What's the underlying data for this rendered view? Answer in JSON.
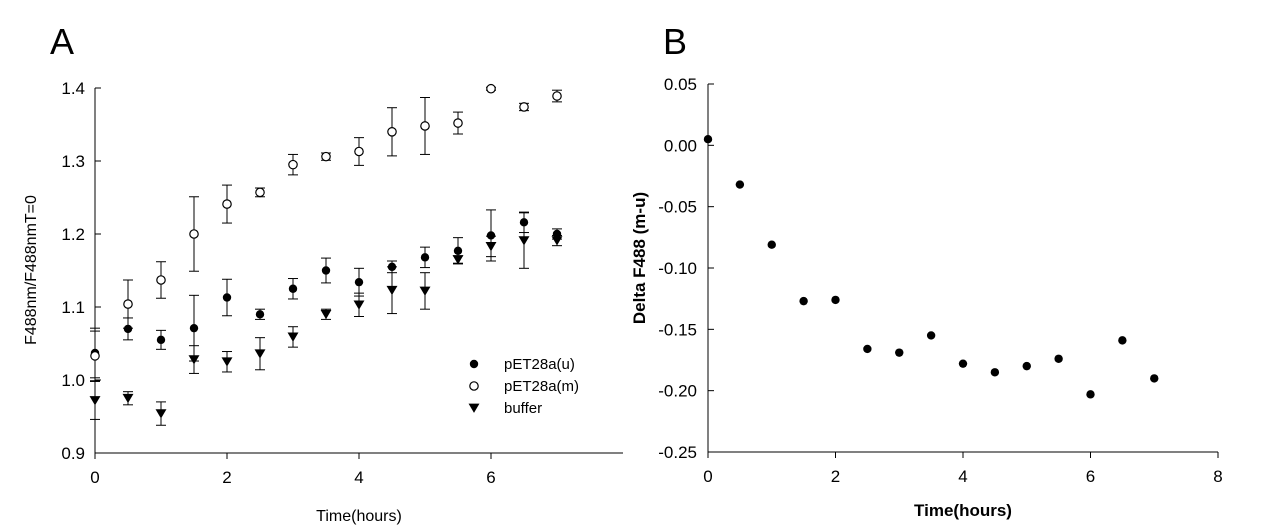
{
  "chart_data": [
    {
      "panel_label": "A",
      "type": "scatter",
      "xlabel": "Time(hours)",
      "ylabel": "F488nm/F488nmT=0",
      "xlim": [
        0,
        8
      ],
      "ylim": [
        0.9,
        1.4
      ],
      "xticks": [
        0,
        2,
        4,
        6
      ],
      "yticks": [
        0.9,
        1.0,
        1.1,
        1.2,
        1.3,
        1.4
      ],
      "ytick_format": 1,
      "legend_position": "lower-right",
      "series": [
        {
          "name": "pET28a(u)",
          "marker": "filled-circle",
          "x": [
            0,
            0.5,
            1,
            1.5,
            2,
            2.5,
            3,
            3.5,
            4,
            4.5,
            5,
            5.5,
            6,
            6.5,
            7
          ],
          "y": [
            1.037,
            1.07,
            1.055,
            1.071,
            1.113,
            1.09,
            1.125,
            1.15,
            1.134,
            1.155,
            1.168,
            1.177,
            1.198,
            1.216,
            1.2
          ],
          "err": [
            0.034,
            0.015,
            0.013,
            0.045,
            0.025,
            0.007,
            0.014,
            0.017,
            0.019,
            0.008,
            0.014,
            0.018,
            0.035,
            0.014,
            0.007
          ]
        },
        {
          "name": "pET28a(m)",
          "marker": "open-circle",
          "x": [
            0,
            0.5,
            1,
            1.5,
            2,
            2.5,
            3,
            3.5,
            4,
            4.5,
            5,
            5.5,
            6,
            6.5,
            7
          ],
          "y": [
            1.033,
            1.104,
            1.137,
            1.2,
            1.241,
            1.257,
            1.295,
            1.306,
            1.313,
            1.34,
            1.348,
            1.352,
            1.399,
            1.374,
            1.389
          ],
          "err": [
            0.034,
            0.033,
            0.025,
            0.051,
            0.026,
            0.006,
            0.014,
            0.005,
            0.019,
            0.033,
            0.039,
            0.015,
            0.002,
            0.005,
            0.008
          ]
        },
        {
          "name": "buffer",
          "marker": "filled-triangle-down",
          "x": [
            0,
            0.5,
            1,
            1.5,
            2,
            2.5,
            3,
            3.5,
            4,
            4.5,
            5,
            5.5,
            6,
            6.5,
            7
          ],
          "y": [
            0.972,
            0.975,
            0.954,
            1.028,
            1.025,
            1.036,
            1.059,
            1.09,
            1.103,
            1.123,
            1.122,
            1.165,
            1.183,
            1.191,
            1.191
          ],
          "err": [
            0.026,
            0.009,
            0.016,
            0.019,
            0.014,
            0.022,
            0.014,
            0.007,
            0.016,
            0.032,
            0.025,
            0.005,
            0.014,
            0.038,
            0.007
          ]
        }
      ]
    },
    {
      "panel_label": "B",
      "type": "scatter",
      "xlabel": "Time(hours)",
      "ylabel": "Delta F488 (m-u)",
      "xlim": [
        0,
        8
      ],
      "ylim": [
        -0.25,
        0.05
      ],
      "xticks": [
        0,
        2,
        4,
        6,
        8
      ],
      "yticks": [
        -0.25,
        -0.2,
        -0.15,
        -0.1,
        -0.05,
        0.0,
        0.05
      ],
      "ytick_format": 2,
      "series": [
        {
          "marker": "filled-circle",
          "x": [
            0,
            0.5,
            1,
            1.5,
            2,
            2.5,
            3,
            3.5,
            4,
            4.5,
            5,
            5.5,
            6,
            6.5,
            7
          ],
          "y": [
            0.005,
            -0.032,
            -0.081,
            -0.127,
            -0.126,
            -0.166,
            -0.169,
            -0.155,
            -0.178,
            -0.185,
            -0.18,
            -0.174,
            -0.203,
            -0.159,
            -0.19
          ]
        }
      ]
    }
  ]
}
